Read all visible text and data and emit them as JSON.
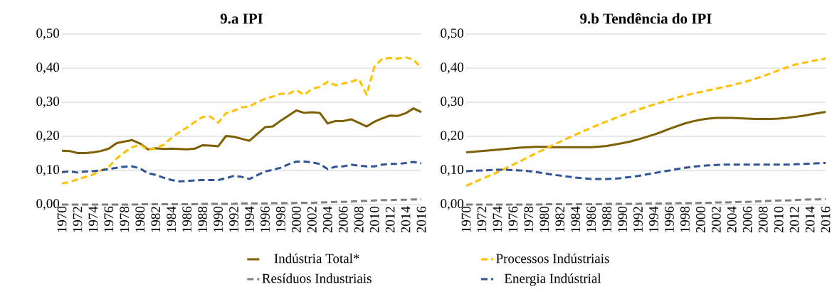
{
  "chart_data": [
    {
      "type": "line",
      "title": "9.a IPI",
      "categories": [
        "1970",
        null,
        "1972",
        null,
        "1974",
        null,
        "1976",
        null,
        "1978",
        null,
        "1980",
        null,
        "1982",
        null,
        "1984",
        null,
        "1986",
        null,
        "1988",
        null,
        "1990",
        null,
        "1992",
        null,
        "1994",
        null,
        "1996",
        null,
        "1998",
        null,
        "2000",
        null,
        "2002",
        null,
        "2004",
        null,
        "2006",
        null,
        "2008",
        null,
        "2010",
        null,
        "2012",
        null,
        "2014",
        null,
        "2016"
      ],
      "ylim": [
        0,
        0.5
      ],
      "yticks": [
        {
          "value": 0,
          "label": "0,00"
        },
        {
          "value": 0.1,
          "label": "0,10"
        },
        {
          "value": 0.2,
          "label": "0,20"
        },
        {
          "value": 0.3,
          "label": "0,30"
        },
        {
          "value": 0.4,
          "label": "0,40"
        },
        {
          "value": 0.5,
          "label": "0,50"
        }
      ],
      "grid": "y",
      "legend": "bottom",
      "marker": "none",
      "series": [
        {
          "name": "Indústria Total*",
          "color": "#7f6000",
          "line_style": "solid",
          "values": [
            0.158,
            0.157,
            0.151,
            0.151,
            0.153,
            0.157,
            0.164,
            0.18,
            0.185,
            0.189,
            0.179,
            0.162,
            0.165,
            0.163,
            0.164,
            0.163,
            0.162,
            0.164,
            0.174,
            0.173,
            0.171,
            0.201,
            0.199,
            0.193,
            0.187,
            0.207,
            0.227,
            0.229,
            0.246,
            0.261,
            0.276,
            0.269,
            0.271,
            0.269,
            0.238,
            0.245,
            0.245,
            0.25,
            0.24,
            0.229,
            0.243,
            0.253,
            0.261,
            0.26,
            0.268,
            0.282,
            0.271
          ]
        },
        {
          "name": "Processos Indústriais",
          "color": "#ffc000",
          "line_style": "dashed",
          "values": [
            0.062,
            0.066,
            0.074,
            0.081,
            0.088,
            0.1,
            0.111,
            0.135,
            0.153,
            0.168,
            0.176,
            0.16,
            0.166,
            0.175,
            0.195,
            0.212,
            0.226,
            0.242,
            0.257,
            0.258,
            0.24,
            0.268,
            0.275,
            0.285,
            0.288,
            0.3,
            0.31,
            0.317,
            0.325,
            0.325,
            0.336,
            0.322,
            0.339,
            0.345,
            0.36,
            0.35,
            0.355,
            0.36,
            0.368,
            0.322,
            0.405,
            0.428,
            0.43,
            0.428,
            0.432,
            0.425,
            0.4
          ]
        },
        {
          "name": "Resíduos Industriais",
          "color": "#808080",
          "line_style": "dashed",
          "values": [
            0.0,
            0.0,
            0.0,
            0.0,
            0.0,
            0.0,
            0.0,
            0.0,
            0.0,
            0.0,
            0.001,
            0.001,
            0.001,
            0.001,
            0.001,
            0.001,
            0.001,
            0.001,
            0.002,
            0.002,
            0.002,
            0.002,
            0.002,
            0.003,
            0.003,
            0.003,
            0.003,
            0.004,
            0.004,
            0.004,
            0.005,
            0.005,
            0.005,
            0.006,
            0.007,
            0.008,
            0.008,
            0.009,
            0.01,
            0.011,
            0.012,
            0.013,
            0.013,
            0.014,
            0.014,
            0.015,
            0.015
          ]
        },
        {
          "name": "Energia Indústrial",
          "color": "#2f5597",
          "line_style": "dashed",
          "values": [
            0.095,
            0.097,
            0.094,
            0.097,
            0.098,
            0.1,
            0.104,
            0.108,
            0.111,
            0.112,
            0.106,
            0.092,
            0.087,
            0.079,
            0.072,
            0.068,
            0.069,
            0.071,
            0.072,
            0.072,
            0.072,
            0.077,
            0.084,
            0.081,
            0.075,
            0.086,
            0.097,
            0.102,
            0.108,
            0.118,
            0.126,
            0.126,
            0.124,
            0.119,
            0.104,
            0.111,
            0.112,
            0.117,
            0.114,
            0.112,
            0.112,
            0.117,
            0.119,
            0.119,
            0.122,
            0.125,
            0.121
          ]
        }
      ]
    },
    {
      "type": "line",
      "title": "9.b Tendência do IPI",
      "categories": [
        "1970",
        null,
        "1972",
        null,
        "1974",
        null,
        "1976",
        null,
        "1978",
        null,
        "1980",
        null,
        "1982",
        null,
        "1984",
        null,
        "1986",
        null,
        "1988",
        null,
        "1990",
        null,
        "1992",
        null,
        "1994",
        null,
        "1996",
        null,
        "1998",
        null,
        "2000",
        null,
        "2002",
        null,
        "2004",
        null,
        "2006",
        null,
        "2008",
        null,
        "2010",
        null,
        "2012",
        null,
        "2014",
        null,
        "2016"
      ],
      "ylim": [
        0,
        0.5
      ],
      "yticks": [
        {
          "value": 0,
          "label": "0,00"
        },
        {
          "value": 0.1,
          "label": "0,10"
        },
        {
          "value": 0.2,
          "label": "0,20"
        },
        {
          "value": 0.3,
          "label": "0,30"
        },
        {
          "value": 0.4,
          "label": "0,40"
        },
        {
          "value": 0.5,
          "label": "0,50"
        }
      ],
      "grid": "y",
      "marker": "none",
      "series": [
        {
          "color": "#7f6000",
          "line_style": "solid",
          "values": [
            0.153,
            0.155,
            0.157,
            0.159,
            0.161,
            0.163,
            0.165,
            0.167,
            0.168,
            0.169,
            0.169,
            0.168,
            0.168,
            0.168,
            0.168,
            0.168,
            0.168,
            0.17,
            0.172,
            0.176,
            0.18,
            0.185,
            0.191,
            0.198,
            0.205,
            0.213,
            0.222,
            0.23,
            0.238,
            0.244,
            0.249,
            0.252,
            0.254,
            0.254,
            0.254,
            0.253,
            0.252,
            0.251,
            0.251,
            0.251,
            0.252,
            0.254,
            0.257,
            0.26,
            0.264,
            0.268,
            0.272
          ]
        },
        {
          "color": "#ffc000",
          "line_style": "dashed",
          "values": [
            0.055,
            0.065,
            0.075,
            0.085,
            0.095,
            0.106,
            0.117,
            0.128,
            0.14,
            0.151,
            0.162,
            0.173,
            0.184,
            0.195,
            0.205,
            0.215,
            0.225,
            0.235,
            0.244,
            0.253,
            0.262,
            0.27,
            0.278,
            0.286,
            0.293,
            0.3,
            0.307,
            0.314,
            0.32,
            0.325,
            0.33,
            0.335,
            0.34,
            0.345,
            0.35,
            0.356,
            0.362,
            0.369,
            0.377,
            0.385,
            0.394,
            0.402,
            0.41,
            0.415,
            0.42,
            0.424,
            0.428
          ]
        },
        {
          "color": "#808080",
          "line_style": "dashed",
          "values": [
            0.0,
            0.0,
            0.0,
            0.0,
            0.0,
            0.0,
            0.0,
            0.0,
            0.0,
            0.0,
            0.001,
            0.001,
            0.001,
            0.001,
            0.001,
            0.001,
            0.001,
            0.001,
            0.002,
            0.002,
            0.002,
            0.002,
            0.002,
            0.003,
            0.003,
            0.003,
            0.003,
            0.004,
            0.004,
            0.004,
            0.005,
            0.005,
            0.006,
            0.006,
            0.007,
            0.008,
            0.008,
            0.009,
            0.01,
            0.011,
            0.012,
            0.012,
            0.013,
            0.014,
            0.015,
            0.015,
            0.016
          ]
        },
        {
          "color": "#2f5597",
          "line_style": "dashed",
          "values": [
            0.098,
            0.099,
            0.1,
            0.101,
            0.102,
            0.102,
            0.101,
            0.1,
            0.098,
            0.095,
            0.092,
            0.088,
            0.085,
            0.082,
            0.079,
            0.077,
            0.075,
            0.075,
            0.075,
            0.076,
            0.078,
            0.081,
            0.084,
            0.088,
            0.092,
            0.096,
            0.1,
            0.104,
            0.108,
            0.111,
            0.113,
            0.115,
            0.116,
            0.117,
            0.117,
            0.117,
            0.117,
            0.117,
            0.117,
            0.117,
            0.117,
            0.117,
            0.118,
            0.119,
            0.12,
            0.121,
            0.122
          ]
        }
      ]
    }
  ]
}
